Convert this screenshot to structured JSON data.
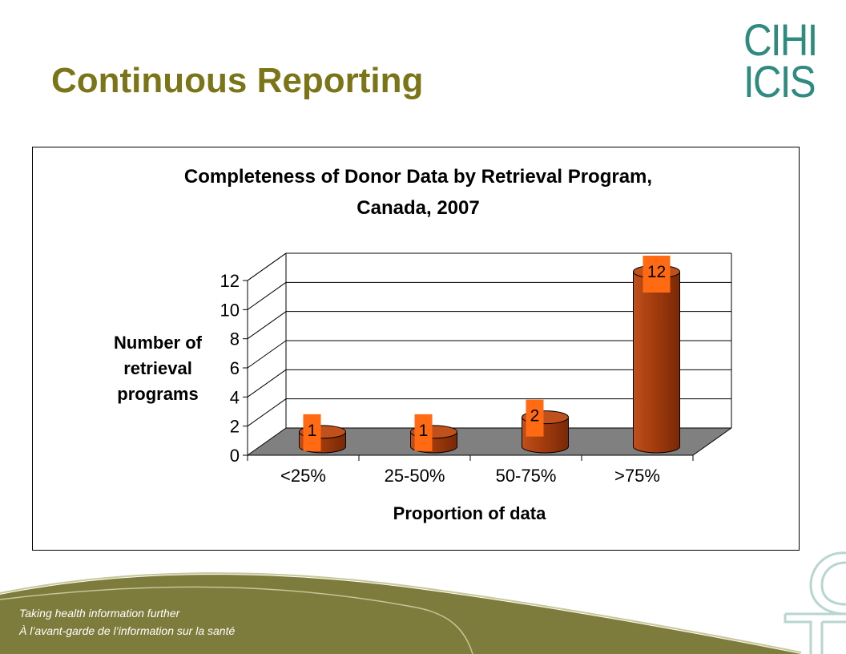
{
  "slide": {
    "title": "Continuous Reporting",
    "logo_line1": "CIHI",
    "logo_line2": "ICIS"
  },
  "footer": {
    "line1": "Taking health information further",
    "line2": "À l’avant-garde de l’information sur la santé"
  },
  "colors": {
    "title": "#7c7418",
    "logo": "#2f8a80",
    "bar_light": "#c0501c",
    "bar_dark": "#7a2806",
    "label_bg": "#ff6a13",
    "floor": "#808080",
    "footer_band": "#7e7c3c"
  },
  "chart_data": {
    "type": "bar",
    "title_line1": "Completeness of Donor Data by Retrieval Program,",
    "title_line2": "Canada, 2007",
    "categories": [
      "<25%",
      "25-50%",
      "50-75%",
      ">75%"
    ],
    "values": [
      1,
      1,
      2,
      12
    ],
    "data_labels": [
      "1",
      "1",
      "2",
      "12"
    ],
    "xlabel": "Proportion of data",
    "ylabel_lines": [
      "Number of",
      "retrieval",
      "programs"
    ],
    "ylim": [
      0,
      12
    ],
    "yticks": [
      "0",
      "2",
      "4",
      "6",
      "8",
      "10",
      "12"
    ],
    "grid": true,
    "style": "3d-cylinder"
  }
}
